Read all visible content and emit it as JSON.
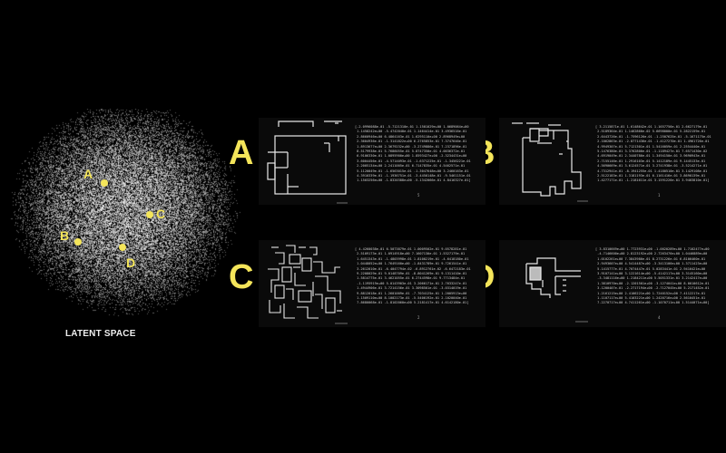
{
  "latent_space": {
    "label": "LATENT SPACE",
    "points": [
      {
        "id": "A",
        "label": "A"
      },
      {
        "id": "B",
        "label": "B"
      },
      {
        "id": "C",
        "label": "C"
      },
      {
        "id": "D",
        "label": "D"
      }
    ]
  },
  "samples": [
    {
      "letter": "A",
      "vector": [
        "[-2.0996088e-01 -5.7121310e-01 1.1501029e+00 1.0689064e+00",
        " 1.1458242e+00 -5.4742040e-01 1.1464414e-01 3.4936516e-01",
        " 2.8660946e+00 6.4864163e-01 1.6295110e+00 2.8968949e+00",
        " 2.3604936e-01 -1.3141822e+00 6.2765853e-01 7.3747646e-01",
        " 1.8913677e+00 2.3679232e+00 -3.2749886e-01 7.2371896e-01",
        " 8.5179938e-01 5.7686055e-01 5.8747350e-01 4.0036372e-01",
        " 6.9106330e-01 1.0895900e+00 1.8593427e+00 -2.3234431e+00",
        " 3.6004456e-01 -4.5714093e-01 -1.6371225e-01 -1.3456221e-01",
        " 2.2005134e+00 2.2411005e-01 6.7147835e-01 4.5462571e-01",
        " 5.1120049e-01 -1.6563015e-01 -1.3047648e+00 3.2460163e-01",
        " 4.3910339e-01 -1.1936751e-01 -3.4450148e-01 -9.5461151e-01",
        " 1.1503256e+00 -1.8320388e+00 -5.1342066e-01 4.8416327e-01]"
      ],
      "page": "5"
    },
    {
      "letter": "B",
      "vector": [
        "[ 3.2115871e-01 1.6148642e-01 1.1657756e-01 2.6627179e-01",
        " 2.5189364e-01 1.1462866e-02 5.6698000e-01 5.2822159e-01",
        " 2.6443726e-01 -1.7596126e-01 -1.2507625e-01 -5.1671175e-01",
        " 2.1062863e-01 -2.8771436e-01 -1.4127270e-01 1.4961726e-01",
        " 4.9949307e-01 5.7121301e-01 1.5416059e-01 2.2554440e-01",
        " 5.1476380e-01 3.3762806e-01 -1.1189427e-01 7.6571430e-02",
        " 4.6919049e-01 2.3440786e-01 1.3494150e-01 3.9690943e-01",
        " 2.7155146e-01 1.2916103e-01 5.1412189e-01 9.1445133e-01",
        " 4.5690669e-01 3.6124571e-01 3.2741938e-01 -3.5214271e-01",
        " 4.7312941e-01 -8.1941255e-01 1.4180510e-01 3.1429108e-01",
        " 2.5122183e-01 1.3181193e-01 6.1161416e-01 3.8690139e-01",
        " 1.4277171e-01 -1.2181611e-01 3.1591226e-01 3.9403810e-01]"
      ],
      "page": "1"
    },
    {
      "letter": "C",
      "vector": [
        "[ 4.4260038e-01 6.5073879e-01 1.0009502e-01 9.0578281e-01",
        " 2.5109173e-01 1.0914918e+00 7.1607130e-01 1.5327179e-01",
        " 1.6451343e-01 -1.4803998e-01 1.8100219e-01 -4.6418180e-01",
        " 1.0448052e+00 1.7649160e+00 -1.8431789e-01 9.7261541e-01",
        " 3.2612010e-01 -6.4047794e-02 -6.8912761e-02 -6.6472183e-01",
        " 9.2208029e-01 9.0148709e-01 -8.8041269e-01 9.1311410e-01",
        " 1.5814775e-01 3.4621055e-01 6.2744598e-01 9.7713484e-01",
        " -1.1195919e+00 5.0143903e-01 3.2066171e-01 2.7633247e-01",
        " 1.4944906e-01 3.7214156e-01 3.3098501e-01 -3.0314019e-01",
        " 9.8812018e-01 1.2601009e-01 -7.7034125e-01 1.2005913e+00",
        " 1.1509110e+00 8.1002173e-01 -5.5406192e-01 2.1020040e-01",
        " 7.8680068e-01 -1.8102060e+00 5.2181417e-01 4.6142180e-01]"
      ],
      "page": "2"
    },
    {
      "letter": "D",
      "vector": [
        "[ 3.8310669e+00 1.7723931e+00 -1.0020289e+00 1.7102477e+00",
        " -4.7146600e+00 2.8123192e+00 2.7263476e+00 1.0446889e+00",
        " 1.0102261e+00 7.3843986e-01 8.2731226e-01 6.8106460e-01",
        " 2.9493607e+00 4.5414487e+00 -3.3413106e+00 1.3711423e+00",
        " 5.1415777e-01 4.7074447e-01 5.0283441e-01 2.9416421e+00",
        " 3.9107141e+00 3.1221614e+00 -5.4142117e+00 3.3145160e+00",
        " -3.3481116e+00 1.2184211e+00 5.5051331e-01 3.2142417e+00",
        " 1.3810970e+00 -2.1201501e+00 -3.1274041e+00 8.0010612e-01",
        " 3.1200407e-01 -2.2717194e+00 -2.7127045e+00 5.2171452e-01",
        " 1.2161215e+00 2.4106221e+00 1.7240152e+00 7.4112217e-01",
        " 1.1107117e+00 5.4103221e+00 1.2420716e+00 2.5610451e-01",
        " 7.2270717e+00 4.7411261e+00 -1.1070711e+00 1.5144071e+00]"
      ],
      "page": "4"
    }
  ],
  "colors": {
    "accent": "#f4e55a",
    "background": "#000000",
    "line": "#e8e8e8"
  }
}
